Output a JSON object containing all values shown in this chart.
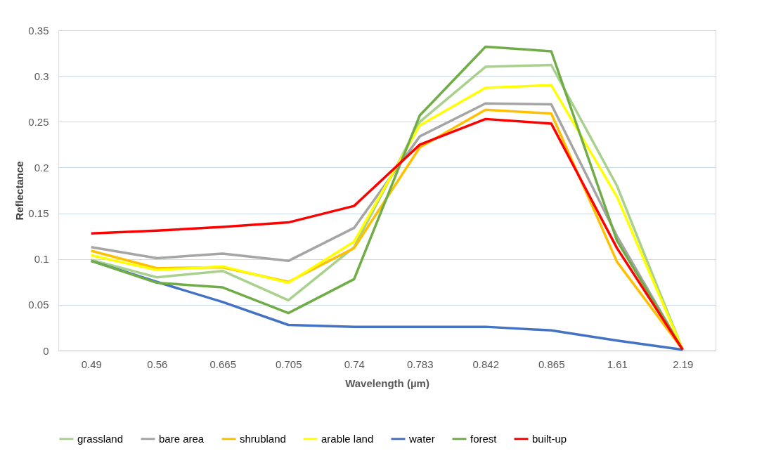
{
  "chart_data": {
    "type": "line",
    "xlabel": "Wavelength (µm)",
    "ylabel": "Reflectance",
    "categories": [
      "0.49",
      "0.56",
      "0.665",
      "0.705",
      "0.74",
      "0.783",
      "0.842",
      "0.865",
      "1.61",
      "2.19"
    ],
    "ylim": [
      0,
      0.35
    ],
    "yticks": [
      0,
      0.05,
      0.1,
      0.15,
      0.2,
      0.25,
      0.3,
      0.35
    ],
    "grid": "y",
    "legend": "bottom",
    "marker": "none",
    "line_style": "solid",
    "series": [
      {
        "name": "grassland",
        "color": "#a9d18e",
        "values": [
          0.099,
          0.08,
          0.087,
          0.055,
          0.113,
          0.25,
          0.31,
          0.312,
          0.18,
          0.001
        ]
      },
      {
        "name": "bare area",
        "color": "#a5a5a5",
        "values": [
          0.113,
          0.101,
          0.106,
          0.098,
          0.134,
          0.234,
          0.27,
          0.269,
          0.125,
          0.001
        ]
      },
      {
        "name": "shrubland",
        "color": "#ffc000",
        "values": [
          0.109,
          0.09,
          0.091,
          0.075,
          0.112,
          0.222,
          0.263,
          0.259,
          0.097,
          0.001
        ]
      },
      {
        "name": "arable land",
        "color": "#ffff00",
        "values": [
          0.104,
          0.088,
          0.092,
          0.074,
          0.119,
          0.246,
          0.287,
          0.29,
          0.168,
          0.001
        ]
      },
      {
        "name": "water",
        "color": "#4472c4",
        "values": [
          0.098,
          0.075,
          0.053,
          0.028,
          0.026,
          0.026,
          0.026,
          0.022,
          0.011,
          0.001
        ]
      },
      {
        "name": "forest",
        "color": "#70ad47",
        "values": [
          0.098,
          0.074,
          0.069,
          0.041,
          0.078,
          0.257,
          0.332,
          0.327,
          0.12,
          0.001
        ]
      },
      {
        "name": "built-up",
        "color": "#ff0000",
        "values": [
          0.128,
          0.131,
          0.135,
          0.14,
          0.158,
          0.225,
          0.253,
          0.248,
          0.112,
          0.001
        ]
      }
    ]
  }
}
